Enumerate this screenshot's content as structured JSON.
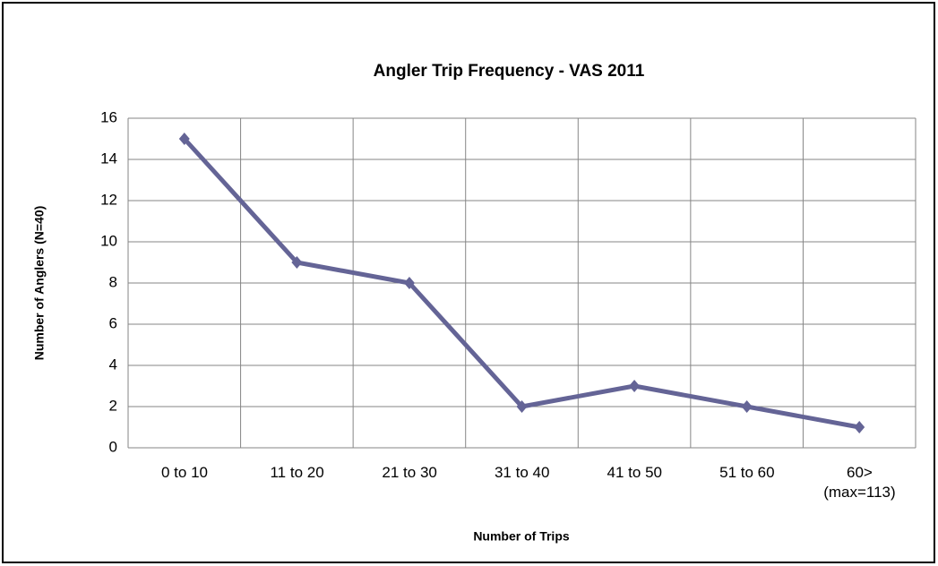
{
  "chart_data": {
    "type": "line",
    "title": "Angler Trip Frequency - VAS 2011",
    "x_label": "Number of Trips",
    "y_label": "Number of Anglers (N=40)",
    "categories": [
      "0 to 10",
      "11 to 20",
      "21 to 30",
      "31 to 40",
      "41 to 50",
      "51 to 60",
      "60>\n(max=113)"
    ],
    "series": [
      {
        "name": "Number of Anglers",
        "color": "#646496",
        "values": [
          15,
          9,
          8,
          2,
          3,
          2,
          1
        ]
      }
    ],
    "ylim": [
      0,
      16
    ],
    "yticks": [
      0,
      2,
      4,
      6,
      8,
      10,
      12,
      14,
      16
    ],
    "grid": true,
    "legend": false
  }
}
